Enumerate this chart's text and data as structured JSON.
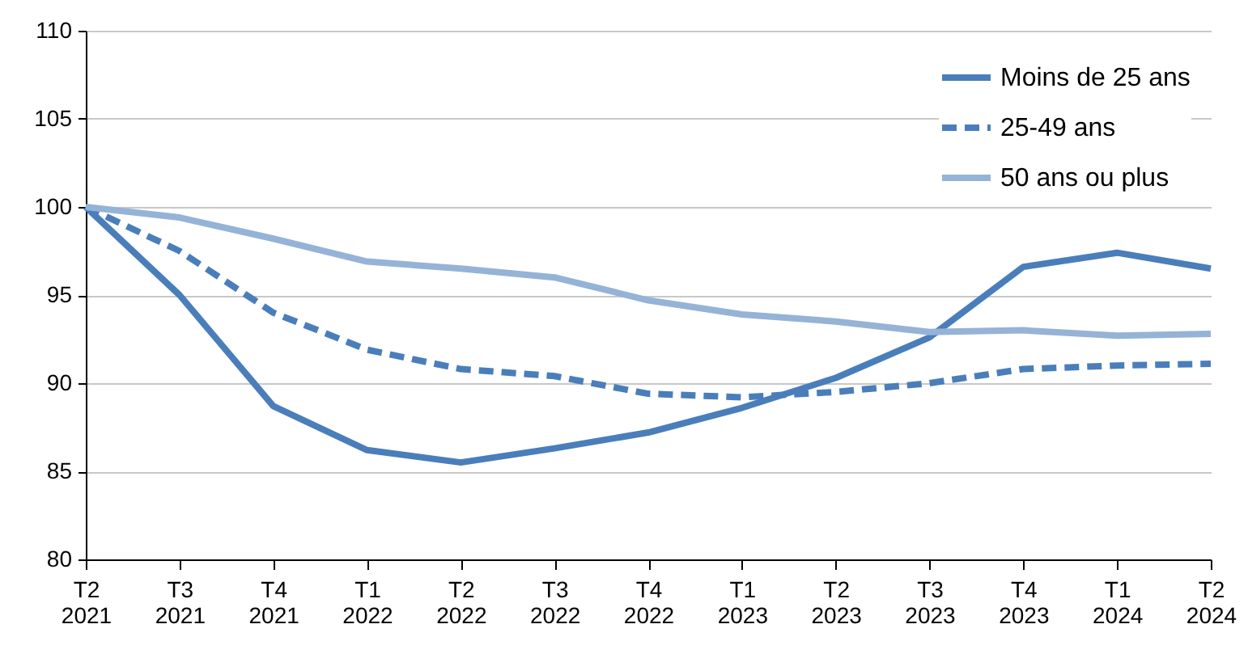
{
  "chart_data": {
    "type": "line",
    "categories": [
      "T2 2021",
      "T3 2021",
      "T4 2021",
      "T1 2022",
      "T2 2022",
      "T3 2022",
      "T4 2022",
      "T1 2023",
      "T2 2023",
      "T3 2023",
      "T4 2023",
      "T1 2024",
      "T2 2024"
    ],
    "series": [
      {
        "name": "Moins de 25 ans",
        "color": "#4a7ebb",
        "line_style": "solid",
        "values": [
          100,
          95,
          88.7,
          86.2,
          85.5,
          86.3,
          87.2,
          88.6,
          90.3,
          92.6,
          96.6,
          97.4,
          96.5
        ]
      },
      {
        "name": "25-49 ans",
        "color": "#4a7ebb",
        "line_style": "dashed",
        "values": [
          100,
          97.5,
          94.0,
          91.9,
          90.8,
          90.4,
          89.4,
          89.2,
          89.5,
          90.0,
          90.8,
          91.0,
          91.1
        ]
      },
      {
        "name": "50 ans ou plus",
        "color": "#95b3d7",
        "line_style": "solid",
        "values": [
          100,
          99.4,
          98.2,
          96.9,
          96.5,
          96.0,
          94.7,
          93.9,
          93.5,
          92.9,
          93.0,
          92.7,
          92.8
        ]
      }
    ],
    "ylim": [
      80,
      110
    ],
    "yticks": [
      80,
      85,
      90,
      95,
      100,
      105,
      110
    ],
    "grid": "y",
    "legend": "top right",
    "marker": "none"
  }
}
